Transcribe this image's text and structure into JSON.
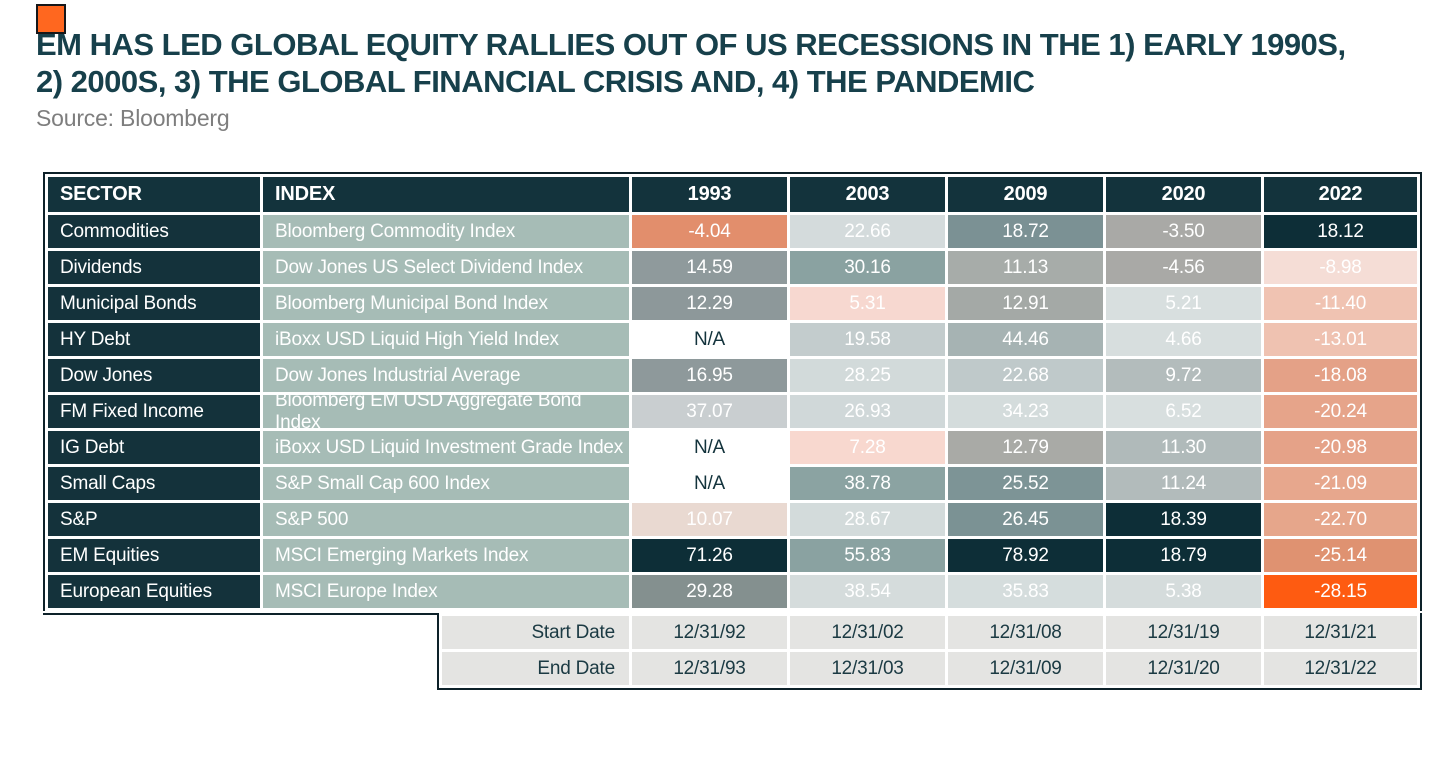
{
  "title": {
    "line1": "EM HAS LED GLOBAL EQUITY RALLIES OUT OF US RECESSIONS IN THE 1) EARLY 1990s,",
    "line2": "2) 2000s, 3) THE GLOBAL FINANCIAL CRISIS AND, 4) THE PANDEMIC"
  },
  "source": "Source: Bloomberg",
  "colors": {
    "accent_orange": "#ff671f",
    "title_teal": "#17404b",
    "header_bg": "#13333c",
    "sector_bg": "#14323b",
    "index_bg": "#a6bcb6",
    "dark_cell": "#0d2e37",
    "na_text": "#13333c",
    "date_bg": "#e4e4e2",
    "outline": "#0d2129",
    "worst_orange": "#fe5b11"
  },
  "chart_data": {
    "type": "table",
    "title": "EM HAS LED GLOBAL EQUITY RALLIES OUT OF US RECESSIONS IN THE 1) EARLY 1990s, 2) 2000s, 3) THE GLOBAL FINANCIAL CRISIS AND, 4) THE PANDEMIC",
    "header_labels": [
      "SECTOR",
      "INDEX",
      "1993",
      "2003",
      "2009",
      "2020",
      "2022"
    ],
    "columns": [
      "1993",
      "2003",
      "2009",
      "2020",
      "2022"
    ],
    "rows": [
      {
        "sector": "Commodities",
        "index": "Bloomberg Commodity Index",
        "values": [
          -4.04,
          22.66,
          18.72,
          -3.5,
          18.12
        ],
        "cell_colors": [
          "#e28e6c",
          "#d4dbdc",
          "#7b9194",
          "#a9a9a6",
          "#0d2e37"
        ]
      },
      {
        "sector": "Dividends",
        "index": "Dow Jones US Select Dividend Index",
        "values": [
          14.59,
          30.16,
          11.13,
          -4.56,
          -8.98
        ],
        "cell_colors": [
          "#8f9a9c",
          "#8aa2a1",
          "#a7aca9",
          "#a9a9a6",
          "#f5ddd6"
        ]
      },
      {
        "sector": "Municipal Bonds",
        "index": "Bloomberg Municipal Bond Index",
        "values": [
          12.29,
          5.31,
          12.91,
          5.21,
          -11.4
        ],
        "cell_colors": [
          "#8d989a",
          "#f7d8d0",
          "#a4a9a6",
          "#d8dfdf",
          "#f0c3b2"
        ]
      },
      {
        "sector": "HY Debt",
        "index": "iBoxx USD Liquid High Yield Index",
        "values": [
          null,
          19.58,
          44.46,
          4.66,
          -13.01
        ],
        "cell_colors": [
          "#ffffff",
          "#c3cccd",
          "#a6b3b3",
          "#d7dede",
          "#efc2b1"
        ]
      },
      {
        "sector": "Dow Jones",
        "index": "Dow Jones Industrial Average",
        "values": [
          16.95,
          28.25,
          22.68,
          9.72,
          -18.08
        ],
        "cell_colors": [
          "#8e999b",
          "#d2dada",
          "#bfc9ca",
          "#b3bcbc",
          "#e4a187"
        ]
      },
      {
        "sector": "FM Fixed Income",
        "index": "Bloomberg EM USD Aggregate Bond Index",
        "values": [
          37.07,
          26.93,
          34.23,
          6.52,
          -20.24
        ],
        "cell_colors": [
          "#c9ced0",
          "#d0d8d9",
          "#d4dcdc",
          "#d8dfdf",
          "#e6a48a"
        ]
      },
      {
        "sector": "IG Debt",
        "index": "iBoxx USD Liquid Investment Grade Index",
        "values": [
          null,
          7.28,
          12.79,
          11.3,
          -20.98
        ],
        "cell_colors": [
          "#ffffff",
          "#f8d8cf",
          "#a9aaa6",
          "#b0baba",
          "#e5a288"
        ]
      },
      {
        "sector": "Small Caps",
        "index": "S&P Small Cap 600 Index",
        "values": [
          null,
          38.78,
          25.52,
          11.24,
          -21.09
        ],
        "cell_colors": [
          "#ffffff",
          "#8ba3a2",
          "#7d9496",
          "#b2bbbb",
          "#e7a78d"
        ]
      },
      {
        "sector": "S&P",
        "index": "S&P 500",
        "values": [
          10.07,
          28.67,
          26.45,
          18.39,
          -22.7
        ],
        "cell_colors": [
          "#e9d9d1",
          "#d3dbdb",
          "#7b9294",
          "#0d2e37",
          "#e6a68b"
        ]
      },
      {
        "sector": "EM Equities",
        "index": "MSCI Emerging Markets Index",
        "values": [
          71.26,
          55.83,
          78.92,
          18.79,
          -25.14
        ],
        "cell_colors": [
          "#0d2e37",
          "#8aa2a1",
          "#0d2e37",
          "#0d2e37",
          "#df9271"
        ]
      },
      {
        "sector": "European Equities",
        "index": "MSCI Europe Index",
        "values": [
          29.28,
          38.54,
          35.83,
          5.38,
          -28.15
        ],
        "cell_colors": [
          "#84908f",
          "#d5dcdc",
          "#d5dddd",
          "#d5dcdc",
          "#fe5b11"
        ]
      }
    ],
    "na_label": "N/A",
    "footer": [
      {
        "label": "Start Date",
        "dates": [
          "12/31/92",
          "12/31/02",
          "12/31/08",
          "12/31/19",
          "12/31/21"
        ]
      },
      {
        "label": "End Date",
        "dates": [
          "12/31/93",
          "12/31/03",
          "12/31/09",
          "12/31/20",
          "12/31/22"
        ]
      }
    ]
  }
}
